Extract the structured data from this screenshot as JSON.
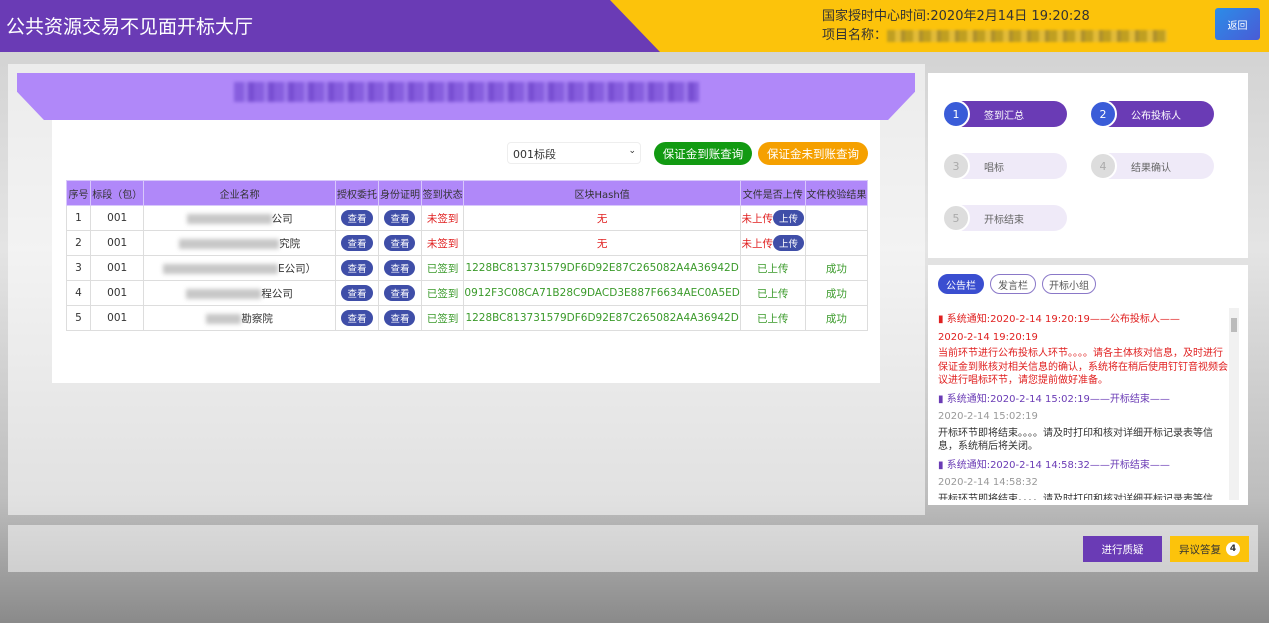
{
  "header": {
    "title": "公共资源交易不见面开标大厅",
    "time_label": "国家授时中心时间:",
    "time_value": "2020年2月14日 19:20:28",
    "project_label": "项目名称：",
    "back_label": "返回"
  },
  "colors": {
    "primary": "#6a3bb5",
    "accent": "#fcc30b",
    "banner": "#b088f9",
    "success": "#1a9a1a",
    "warning": "#f5a000",
    "danger": "#e02020"
  },
  "toolbar": {
    "lot_selected": "001标段",
    "deposit_received_label": "保证金到账查询",
    "deposit_not_received_label": "保证金未到账查询"
  },
  "table": {
    "headers": [
      "序号",
      "标段（包）",
      "企业名称",
      "授权委托",
      "身份证明",
      "签到状态",
      "区块Hash值",
      "文件是否上传",
      "文件校验结果"
    ],
    "view_label": "查看",
    "upload_label": "上传",
    "rows": [
      {
        "no": "1",
        "lot": "001",
        "company_suffix": "公司",
        "status": "未签到",
        "hash": "无",
        "upload": "未上传",
        "verify": ""
      },
      {
        "no": "2",
        "lot": "001",
        "company_suffix": "究院",
        "status": "未签到",
        "hash": "无",
        "upload": "未上传",
        "verify": ""
      },
      {
        "no": "3",
        "lot": "001",
        "company_suffix": "E公司）",
        "status": "已签到",
        "hash": "1228BC813731579DF6D92E87C265082A4A36942D",
        "upload": "已上传",
        "verify": "成功"
      },
      {
        "no": "4",
        "lot": "001",
        "company_suffix": "程公司",
        "status": "已签到",
        "hash": "0912F3C08CA71B28C9DACD3E887F6634AEC0A5ED",
        "upload": "已上传",
        "verify": "成功"
      },
      {
        "no": "5",
        "lot": "001",
        "company_suffix": "勘察院",
        "status": "已签到",
        "hash": "1228BC813731579DF6D92E87C265082A4A36942D",
        "upload": "已上传",
        "verify": "成功"
      }
    ]
  },
  "steps": [
    {
      "num": "1",
      "label": "签到汇总",
      "active": true
    },
    {
      "num": "2",
      "label": "公布投标人",
      "active": true
    },
    {
      "num": "3",
      "label": "唱标",
      "active": false
    },
    {
      "num": "4",
      "label": "结果确认",
      "active": false
    },
    {
      "num": "5",
      "label": "开标结束",
      "active": false
    }
  ],
  "notice": {
    "tabs": [
      "公告栏",
      "发言栏",
      "开标小组"
    ],
    "messages": [
      {
        "head": "系统通知:2020-2-14 19:20:19——公布投标人——",
        "time": "2020-2-14 19:20:19",
        "body": "当前环节进行公布投标人环节。。。。请各主体核对信息，及时进行保证金到账核对相关信息的确认，系统将在稍后使用钉钉音视频会议进行唱标环节，请您提前做好准备。",
        "highlight": true
      },
      {
        "head": "系统通知:2020-2-14 15:02:19——开标结束——",
        "time": "2020-2-14 15:02:19",
        "body": "开标环节即将结束。。。。请及时打印和核对详细开标记录表等信息，系统稍后将关闭。",
        "highlight": false
      },
      {
        "head": "系统通知:2020-2-14 14:58:32——开标结束——",
        "time": "2020-2-14 14:58:32",
        "body": "开标环节即将结束。。。。请及时打印和核对详细开标记录表等信息，系统稍后将关闭。",
        "highlight": false
      }
    ]
  },
  "footer": {
    "question_label": "进行质疑",
    "objection_label": "异议答复",
    "objection_count": "4"
  }
}
